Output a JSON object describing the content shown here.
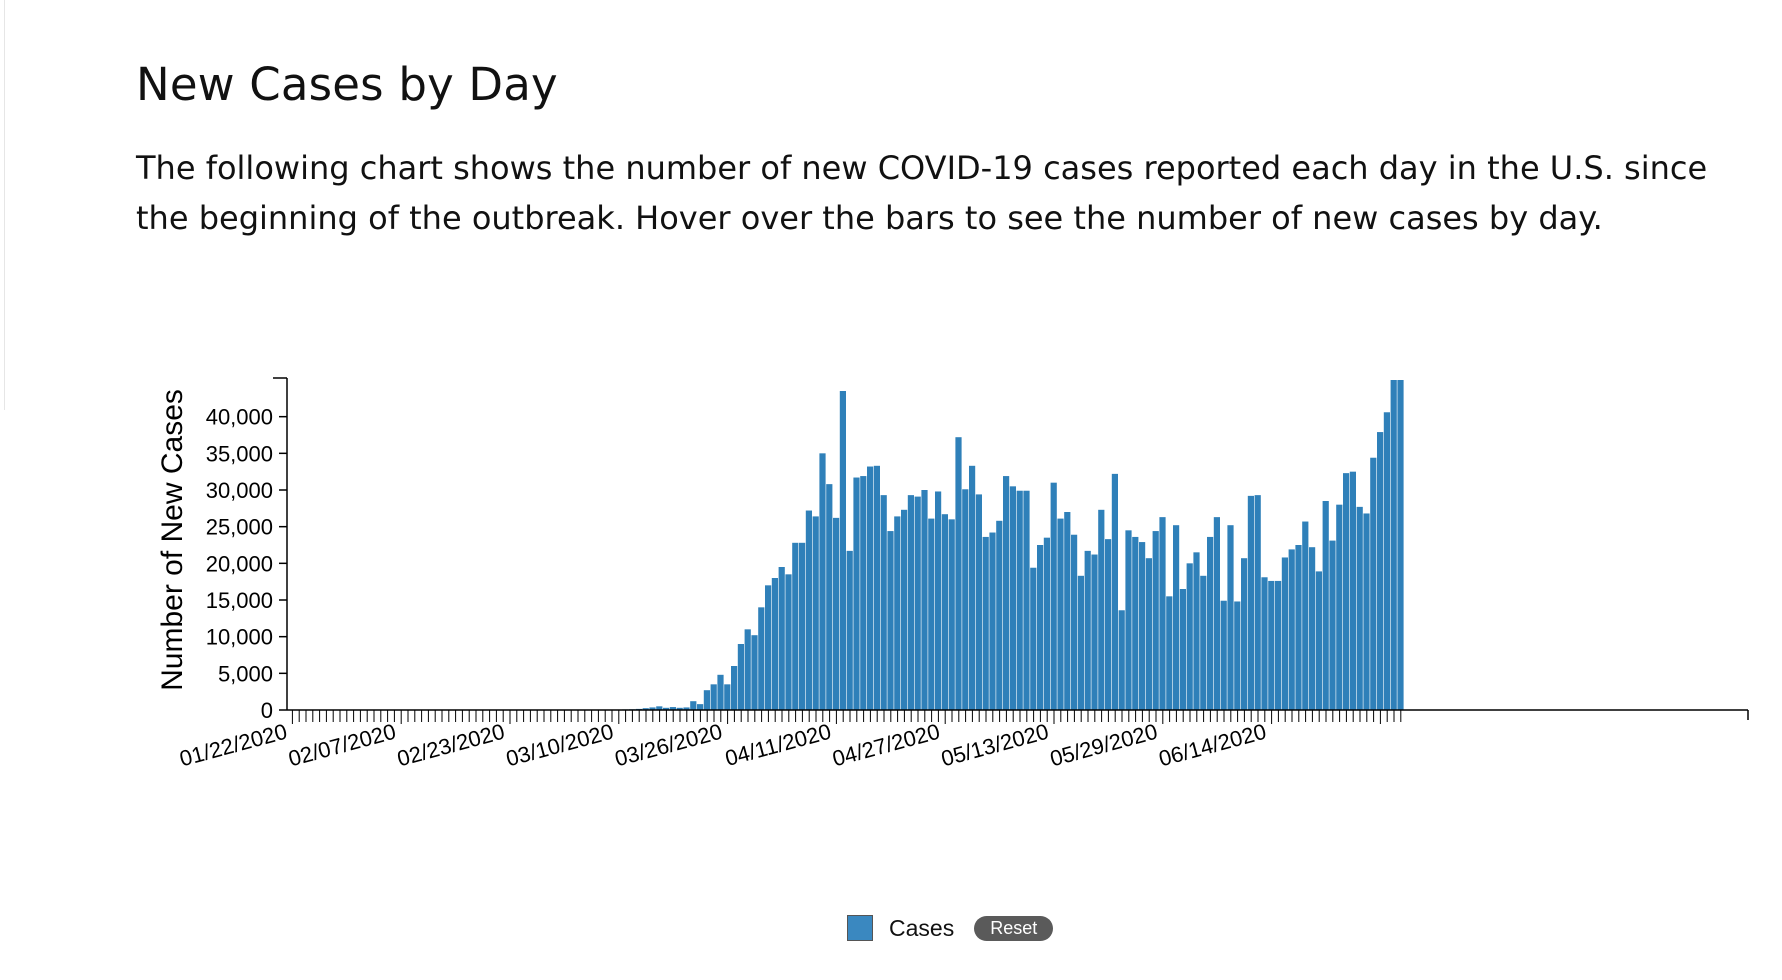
{
  "header": {
    "title": "New Cases by Day",
    "description": "The following chart shows the number of new COVID-19 cases reported each day in the U.S. since the beginning of the outbreak. Hover over the bars to see the number of new cases by day."
  },
  "legend": {
    "label": "Cases",
    "reset_label": "Reset"
  },
  "colors": {
    "bar": "#2f80b9",
    "legend_swatch": "#3a88c0",
    "reset_bg": "#5a5a5a"
  },
  "chart_data": {
    "type": "bar",
    "ylabel": "Number of New Cases",
    "xlabel": "",
    "ylim": [
      0,
      45000
    ],
    "yticks": [
      0,
      5000,
      10000,
      15000,
      20000,
      25000,
      30000,
      35000,
      40000
    ],
    "ytick_labels": [
      "0",
      "5,000",
      "10,000",
      "15,000",
      "20,000",
      "25,000",
      "30,000",
      "35,000",
      "40,000"
    ],
    "x_start_date": "01/22/2020",
    "x_tick_labels": [
      "01/22/2020",
      "02/07/2020",
      "02/23/2020",
      "03/10/2020",
      "03/26/2020",
      "04/11/2020",
      "04/27/2020",
      "05/13/2020",
      "05/29/2020",
      "06/14/2020"
    ],
    "grid": false,
    "legend_position": "bottom-center",
    "series": [
      {
        "name": "Cases",
        "values": [
          1,
          0,
          1,
          2,
          0,
          0,
          0,
          0,
          1,
          1,
          1,
          0,
          2,
          0,
          0,
          0,
          0,
          0,
          0,
          0,
          0,
          0,
          1,
          0,
          0,
          0,
          0,
          0,
          0,
          0,
          0,
          0,
          0,
          0,
          0,
          1,
          0,
          0,
          0,
          0,
          0,
          3,
          5,
          8,
          10,
          15,
          20,
          40,
          60,
          80,
          100,
          150,
          250,
          350,
          500,
          300,
          400,
          300,
          350,
          1200,
          800,
          2700,
          3500,
          4800,
          3500,
          6000,
          9000,
          11000,
          10200,
          14000,
          17000,
          18000,
          19500,
          18500,
          22800,
          22800,
          27200,
          26400,
          35000,
          30800,
          26200,
          43500,
          21700,
          31700,
          31900,
          33200,
          33300,
          29300,
          24400,
          26400,
          27300,
          29300,
          29100,
          30000,
          26100,
          29800,
          26700,
          26000,
          37200,
          30100,
          33300,
          29400,
          23600,
          24200,
          25800,
          31900,
          30500,
          29900,
          29900,
          19400,
          22500,
          23500,
          31000,
          26100,
          27000,
          23900,
          18300,
          21700,
          21200,
          27300,
          23300,
          32200,
          13600,
          24500,
          23600,
          22900,
          20700,
          24400,
          26300,
          15500,
          25200,
          16500,
          20000,
          21500,
          18300,
          23600,
          26300,
          14900,
          25200,
          14800,
          20700,
          29200,
          29300,
          18100,
          17600,
          17600,
          20800,
          21900,
          22500,
          25700,
          22200,
          18900,
          28500,
          23100,
          28000,
          32300,
          32500,
          27700,
          26800,
          34400,
          37900,
          40600,
          45000,
          45000
        ]
      }
    ]
  }
}
